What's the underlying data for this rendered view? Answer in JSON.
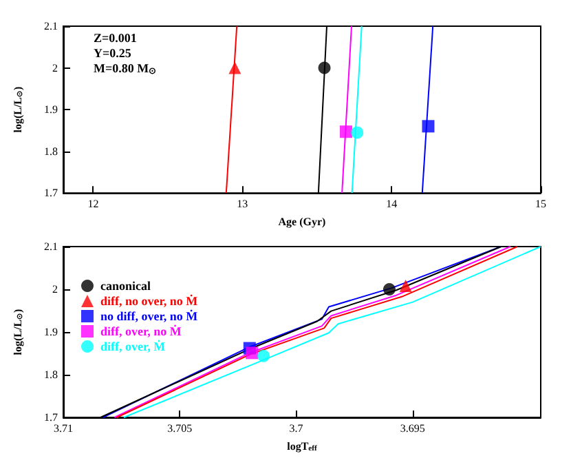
{
  "chart_data": [
    {
      "type": "line",
      "xlabel": "Age (Gyr)",
      "ylabel": "log(L/L$_{⊙}$)",
      "xlim": [
        11.8,
        15
      ],
      "xticks": [
        12,
        13,
        14,
        15
      ],
      "ylim": [
        1.7,
        2.1
      ],
      "yticks": [
        1.7,
        1.8,
        1.9,
        2,
        2.1
      ],
      "legend": false,
      "annotations": [
        "Z=0.001",
        "Y=0.25",
        "M=0.80 M$_{⊙}$"
      ],
      "series": [
        {
          "color": "#ff0000",
          "x": [
            12.892,
            12.963
          ],
          "values": [
            1.7,
            2.1
          ]
        },
        {
          "color": "#000000",
          "x": [
            13.51,
            13.566
          ],
          "values": [
            1.7,
            2.1
          ]
        },
        {
          "color": "#ff00ff",
          "x": [
            13.668,
            13.732
          ],
          "values": [
            1.7,
            2.1
          ]
        },
        {
          "color": "#00ffff",
          "x": [
            13.735,
            13.8
          ],
          "values": [
            1.7,
            2.1
          ]
        },
        {
          "color": "#0000ff",
          "x": [
            14.206,
            14.277
          ],
          "values": [
            1.7,
            2.1
          ]
        },
        {
          "type": "scatter",
          "color": "#000000",
          "marker": "circle",
          "x": [
            13.55
          ],
          "values": [
            2.0
          ]
        },
        {
          "type": "scatter",
          "color": "#ff0000",
          "marker": "triangle",
          "x": [
            12.95
          ],
          "values": [
            2.0
          ]
        },
        {
          "type": "scatter",
          "color": "#0000ff",
          "marker": "square",
          "x": [
            14.246
          ],
          "values": [
            1.86
          ]
        },
        {
          "type": "scatter",
          "color": "#ff00ff",
          "marker": "square",
          "x": [
            13.695
          ],
          "values": [
            1.847
          ]
        },
        {
          "type": "scatter",
          "color": "#00ffff",
          "marker": "circle",
          "x": [
            13.77
          ],
          "values": [
            1.845
          ]
        }
      ]
    },
    {
      "type": "line",
      "xlabel": "logT$_{eff}$",
      "ylabel": "log(L/L$_{⊙}$)",
      "xlim": [
        3.71,
        3.6895
      ],
      "xticks": [
        3.71,
        3.705,
        3.7,
        3.695
      ],
      "ylim": [
        1.7,
        2.1
      ],
      "yticks": [
        1.7,
        1.8,
        1.9,
        2,
        2.1
      ],
      "legend": "top left",
      "series": [
        {
          "color": "#0000ff",
          "x": [
            3.7083,
            3.702,
            3.6989,
            3.6986,
            3.6959,
            3.6912
          ],
          "values": [
            1.7,
            1.865,
            1.93,
            1.959,
            2.003,
            2.1
          ]
        },
        {
          "color": "#000000",
          "x": [
            3.7084,
            3.702,
            3.6991,
            3.6985,
            3.6957,
            3.6912
          ],
          "values": [
            1.7,
            1.86,
            1.925,
            1.949,
            1.998,
            2.1
          ]
        },
        {
          "color": "#ff00ff",
          "x": [
            3.7078,
            3.702,
            3.6989,
            3.6985,
            3.6957,
            3.6908
          ],
          "values": [
            1.7,
            1.851,
            1.914,
            1.938,
            1.986,
            2.1
          ]
        },
        {
          "color": "#ff0000",
          "x": [
            3.7077,
            3.702,
            3.6988,
            3.6985,
            3.6954,
            3.6905
          ],
          "values": [
            1.7,
            1.847,
            1.909,
            1.932,
            1.984,
            2.1
          ]
        },
        {
          "color": "#00ffff",
          "x": [
            3.7074,
            3.7016,
            3.6986,
            3.6982,
            3.695,
            3.6895
          ],
          "values": [
            1.7,
            1.83,
            1.898,
            1.919,
            1.97,
            2.1
          ]
        },
        {
          "type": "scatter",
          "name": "canonical",
          "color": "#000000",
          "marker": "circle",
          "x": [
            3.696
          ],
          "values": [
            2.0
          ]
        },
        {
          "type": "scatter",
          "name": "diff, no over, no Ṁ",
          "color": "#ff0000",
          "marker": "triangle",
          "x": [
            3.6953
          ],
          "values": [
            2.008
          ]
        },
        {
          "type": "scatter",
          "name": "no diff, over, no Ṁ",
          "color": "#0000ff",
          "marker": "square",
          "x": [
            3.702
          ],
          "values": [
            1.862
          ]
        },
        {
          "type": "scatter",
          "name": "diff, over, no Ṁ",
          "color": "#ff00ff",
          "marker": "square",
          "x": [
            3.7019
          ],
          "values": [
            1.851
          ]
        },
        {
          "type": "scatter",
          "name": "diff, over, Ṁ",
          "color": "#00ffff",
          "marker": "circle",
          "x": [
            3.7014
          ],
          "values": [
            1.844
          ]
        }
      ]
    }
  ]
}
